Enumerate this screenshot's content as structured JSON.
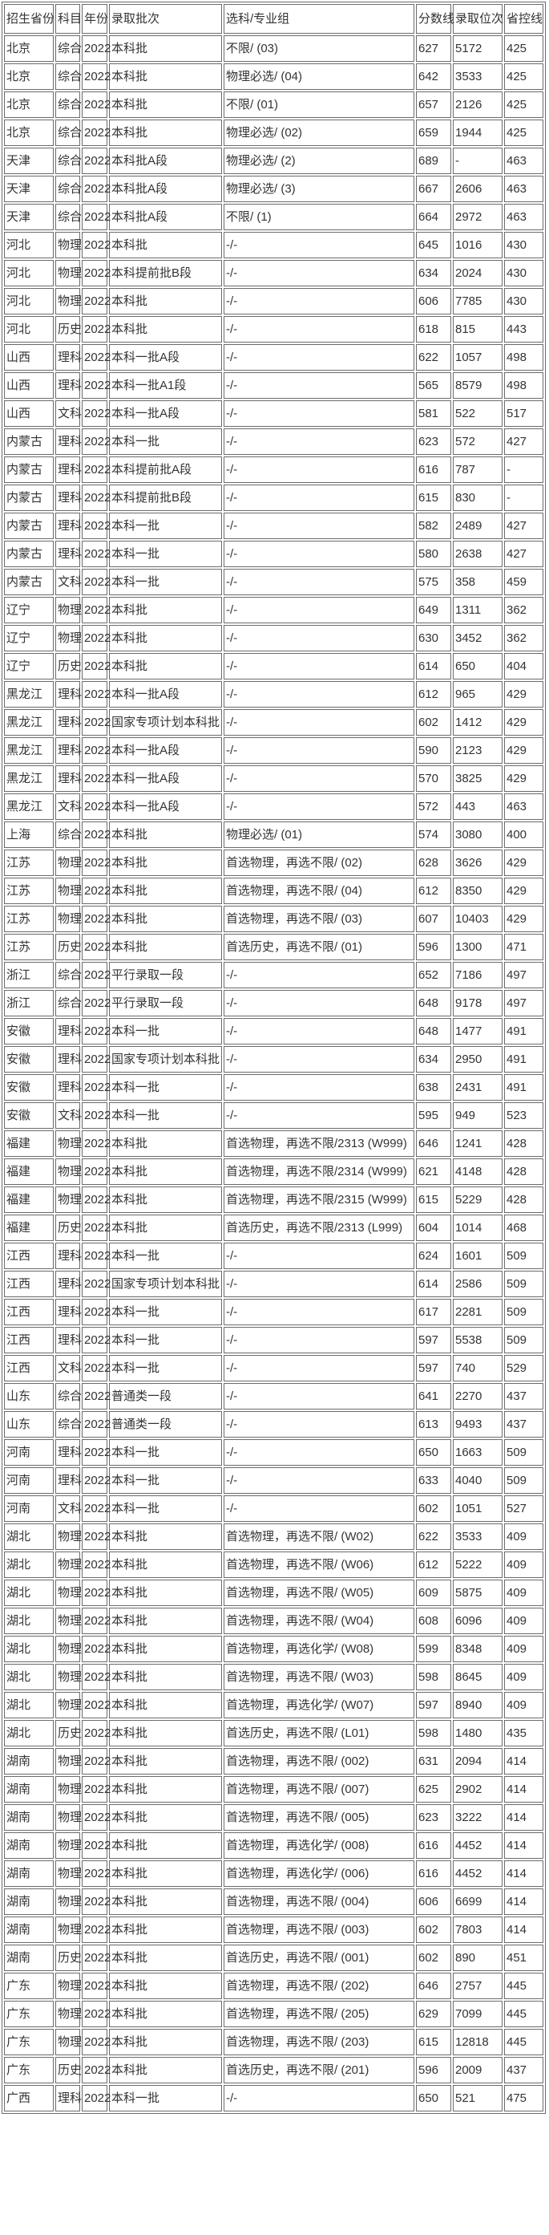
{
  "colors": {
    "border": "#6b6b6b",
    "text": "#333333",
    "background": "#ffffff"
  },
  "table": {
    "columns": [
      "招生省份",
      "科目",
      "年份",
      "录取批次",
      "选科/专业组",
      "分数线",
      "录取位次",
      "省控线"
    ],
    "rows": [
      [
        "北京",
        "综合",
        "2022",
        "本科批",
        "不限/ (03)",
        "627",
        "5172",
        "425"
      ],
      [
        "北京",
        "综合",
        "2022",
        "本科批",
        "物理必选/ (04)",
        "642",
        "3533",
        "425"
      ],
      [
        "北京",
        "综合",
        "2022",
        "本科批",
        "不限/ (01)",
        "657",
        "2126",
        "425"
      ],
      [
        "北京",
        "综合",
        "2022",
        "本科批",
        "物理必选/ (02)",
        "659",
        "1944",
        "425"
      ],
      [
        "天津",
        "综合",
        "2022",
        "本科批A段",
        "物理必选/ (2)",
        "689",
        "-",
        "463"
      ],
      [
        "天津",
        "综合",
        "2022",
        "本科批A段",
        "物理必选/ (3)",
        "667",
        "2606",
        "463"
      ],
      [
        "天津",
        "综合",
        "2022",
        "本科批A段",
        "不限/ (1)",
        "664",
        "2972",
        "463"
      ],
      [
        "河北",
        "物理",
        "2022",
        "本科批",
        "-/-",
        "645",
        "1016",
        "430"
      ],
      [
        "河北",
        "物理",
        "2022",
        "本科提前批B段",
        "-/-",
        "634",
        "2024",
        "430"
      ],
      [
        "河北",
        "物理",
        "2022",
        "本科批",
        "-/-",
        "606",
        "7785",
        "430"
      ],
      [
        "河北",
        "历史",
        "2022",
        "本科批",
        "-/-",
        "618",
        "815",
        "443"
      ],
      [
        "山西",
        "理科",
        "2022",
        "本科一批A段",
        "-/-",
        "622",
        "1057",
        "498"
      ],
      [
        "山西",
        "理科",
        "2022",
        "本科一批A1段",
        "-/-",
        "565",
        "8579",
        "498"
      ],
      [
        "山西",
        "文科",
        "2022",
        "本科一批A段",
        "-/-",
        "581",
        "522",
        "517"
      ],
      [
        "内蒙古",
        "理科",
        "2022",
        "本科一批",
        "-/-",
        "623",
        "572",
        "427"
      ],
      [
        "内蒙古",
        "理科",
        "2022",
        "本科提前批A段",
        "-/-",
        "616",
        "787",
        "-"
      ],
      [
        "内蒙古",
        "理科",
        "2022",
        "本科提前批B段",
        "-/-",
        "615",
        "830",
        "-"
      ],
      [
        "内蒙古",
        "理科",
        "2022",
        "本科一批",
        "-/-",
        "582",
        "2489",
        "427"
      ],
      [
        "内蒙古",
        "理科",
        "2022",
        "本科一批",
        "-/-",
        "580",
        "2638",
        "427"
      ],
      [
        "内蒙古",
        "文科",
        "2022",
        "本科一批",
        "-/-",
        "575",
        "358",
        "459"
      ],
      [
        "辽宁",
        "物理",
        "2022",
        "本科批",
        "-/-",
        "649",
        "1311",
        "362"
      ],
      [
        "辽宁",
        "物理",
        "2022",
        "本科批",
        "-/-",
        "630",
        "3452",
        "362"
      ],
      [
        "辽宁",
        "历史",
        "2022",
        "本科批",
        "-/-",
        "614",
        "650",
        "404"
      ],
      [
        "黑龙江",
        "理科",
        "2022",
        "本科一批A段",
        "-/-",
        "612",
        "965",
        "429"
      ],
      [
        "黑龙江",
        "理科",
        "2022",
        "国家专项计划本科批",
        "-/-",
        "602",
        "1412",
        "429"
      ],
      [
        "黑龙江",
        "理科",
        "2022",
        "本科一批A段",
        "-/-",
        "590",
        "2123",
        "429"
      ],
      [
        "黑龙江",
        "理科",
        "2022",
        "本科一批A段",
        "-/-",
        "570",
        "3825",
        "429"
      ],
      [
        "黑龙江",
        "文科",
        "2022",
        "本科一批A段",
        "-/-",
        "572",
        "443",
        "463"
      ],
      [
        "上海",
        "综合",
        "2022",
        "本科批",
        "物理必选/ (01)",
        "574",
        "3080",
        "400"
      ],
      [
        "江苏",
        "物理",
        "2022",
        "本科批",
        "首选物理，再选不限/ (02)",
        "628",
        "3626",
        "429"
      ],
      [
        "江苏",
        "物理",
        "2022",
        "本科批",
        "首选物理，再选不限/ (04)",
        "612",
        "8350",
        "429"
      ],
      [
        "江苏",
        "物理",
        "2022",
        "本科批",
        "首选物理，再选不限/ (03)",
        "607",
        "10403",
        "429"
      ],
      [
        "江苏",
        "历史",
        "2022",
        "本科批",
        "首选历史，再选不限/ (01)",
        "596",
        "1300",
        "471"
      ],
      [
        "浙江",
        "综合",
        "2022",
        "平行录取一段",
        "-/-",
        "652",
        "7186",
        "497"
      ],
      [
        "浙江",
        "综合",
        "2022",
        "平行录取一段",
        "-/-",
        "648",
        "9178",
        "497"
      ],
      [
        "安徽",
        "理科",
        "2022",
        "本科一批",
        "-/-",
        "648",
        "1477",
        "491"
      ],
      [
        "安徽",
        "理科",
        "2022",
        "国家专项计划本科批",
        "-/-",
        "634",
        "2950",
        "491"
      ],
      [
        "安徽",
        "理科",
        "2022",
        "本科一批",
        "-/-",
        "638",
        "2431",
        "491"
      ],
      [
        "安徽",
        "文科",
        "2022",
        "本科一批",
        "-/-",
        "595",
        "949",
        "523"
      ],
      [
        "福建",
        "物理",
        "2022",
        "本科批",
        "首选物理，再选不限/2313 (W999)",
        "646",
        "1241",
        "428"
      ],
      [
        "福建",
        "物理",
        "2022",
        "本科批",
        "首选物理，再选不限/2314 (W999)",
        "621",
        "4148",
        "428"
      ],
      [
        "福建",
        "物理",
        "2022",
        "本科批",
        "首选物理，再选不限/2315 (W999)",
        "615",
        "5229",
        "428"
      ],
      [
        "福建",
        "历史",
        "2022",
        "本科批",
        "首选历史，再选不限/2313 (L999)",
        "604",
        "1014",
        "468"
      ],
      [
        "江西",
        "理科",
        "2022",
        "本科一批",
        "-/-",
        "624",
        "1601",
        "509"
      ],
      [
        "江西",
        "理科",
        "2022",
        "国家专项计划本科批",
        "-/-",
        "614",
        "2586",
        "509"
      ],
      [
        "江西",
        "理科",
        "2022",
        "本科一批",
        "-/-",
        "617",
        "2281",
        "509"
      ],
      [
        "江西",
        "理科",
        "2022",
        "本科一批",
        "-/-",
        "597",
        "5538",
        "509"
      ],
      [
        "江西",
        "文科",
        "2022",
        "本科一批",
        "-/-",
        "597",
        "740",
        "529"
      ],
      [
        "山东",
        "综合",
        "2022",
        "普通类一段",
        "-/-",
        "641",
        "2270",
        "437"
      ],
      [
        "山东",
        "综合",
        "2022",
        "普通类一段",
        "-/-",
        "613",
        "9493",
        "437"
      ],
      [
        "河南",
        "理科",
        "2022",
        "本科一批",
        "-/-",
        "650",
        "1663",
        "509"
      ],
      [
        "河南",
        "理科",
        "2022",
        "本科一批",
        "-/-",
        "633",
        "4040",
        "509"
      ],
      [
        "河南",
        "文科",
        "2022",
        "本科一批",
        "-/-",
        "602",
        "1051",
        "527"
      ],
      [
        "湖北",
        "物理",
        "2022",
        "本科批",
        "首选物理，再选不限/ (W02)",
        "622",
        "3533",
        "409"
      ],
      [
        "湖北",
        "物理",
        "2022",
        "本科批",
        "首选物理，再选不限/ (W06)",
        "612",
        "5222",
        "409"
      ],
      [
        "湖北",
        "物理",
        "2022",
        "本科批",
        "首选物理，再选不限/ (W05)",
        "609",
        "5875",
        "409"
      ],
      [
        "湖北",
        "物理",
        "2022",
        "本科批",
        "首选物理，再选不限/ (W04)",
        "608",
        "6096",
        "409"
      ],
      [
        "湖北",
        "物理",
        "2022",
        "本科批",
        "首选物理，再选化学/ (W08)",
        "599",
        "8348",
        "409"
      ],
      [
        "湖北",
        "物理",
        "2022",
        "本科批",
        "首选物理，再选不限/ (W03)",
        "598",
        "8645",
        "409"
      ],
      [
        "湖北",
        "物理",
        "2022",
        "本科批",
        "首选物理，再选化学/ (W07)",
        "597",
        "8940",
        "409"
      ],
      [
        "湖北",
        "历史",
        "2022",
        "本科批",
        "首选历史，再选不限/ (L01)",
        "598",
        "1480",
        "435"
      ],
      [
        "湖南",
        "物理",
        "2022",
        "本科批",
        "首选物理，再选不限/ (002)",
        "631",
        "2094",
        "414"
      ],
      [
        "湖南",
        "物理",
        "2022",
        "本科批",
        "首选物理，再选不限/ (007)",
        "625",
        "2902",
        "414"
      ],
      [
        "湖南",
        "物理",
        "2022",
        "本科批",
        "首选物理，再选不限/ (005)",
        "623",
        "3222",
        "414"
      ],
      [
        "湖南",
        "物理",
        "2022",
        "本科批",
        "首选物理，再选化学/ (008)",
        "616",
        "4452",
        "414"
      ],
      [
        "湖南",
        "物理",
        "2022",
        "本科批",
        "首选物理，再选化学/ (006)",
        "616",
        "4452",
        "414"
      ],
      [
        "湖南",
        "物理",
        "2022",
        "本科批",
        "首选物理，再选不限/ (004)",
        "606",
        "6699",
        "414"
      ],
      [
        "湖南",
        "物理",
        "2022",
        "本科批",
        "首选物理，再选不限/ (003)",
        "602",
        "7803",
        "414"
      ],
      [
        "湖南",
        "历史",
        "2022",
        "本科批",
        "首选历史，再选不限/ (001)",
        "602",
        "890",
        "451"
      ],
      [
        "广东",
        "物理",
        "2022",
        "本科批",
        "首选物理，再选不限/ (202)",
        "646",
        "2757",
        "445"
      ],
      [
        "广东",
        "物理",
        "2022",
        "本科批",
        "首选物理，再选不限/ (205)",
        "629",
        "7099",
        "445"
      ],
      [
        "广东",
        "物理",
        "2022",
        "本科批",
        "首选物理，再选不限/ (203)",
        "615",
        "12818",
        "445"
      ],
      [
        "广东",
        "历史",
        "2022",
        "本科批",
        "首选历史，再选不限/ (201)",
        "596",
        "2009",
        "437"
      ],
      [
        "广西",
        "理科",
        "2022",
        "本科一批",
        "-/-",
        "650",
        "521",
        "475"
      ]
    ]
  }
}
